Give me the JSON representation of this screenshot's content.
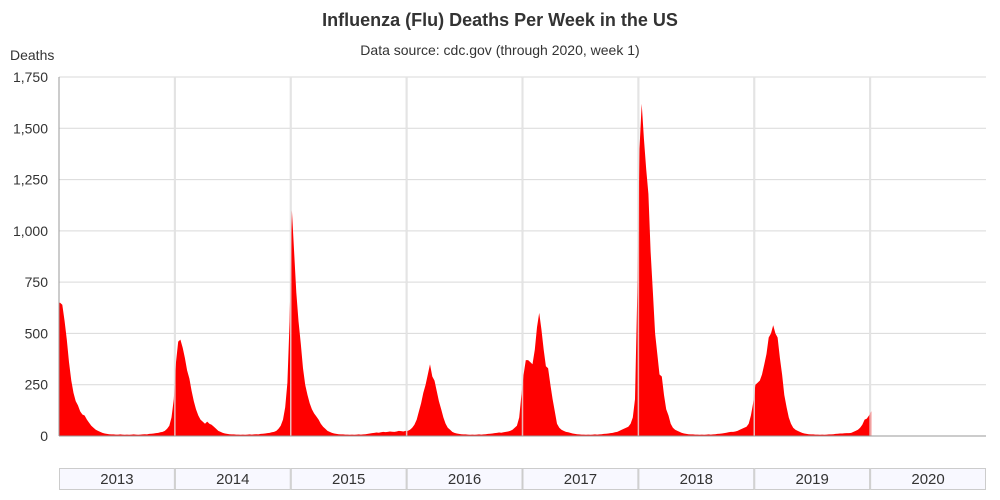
{
  "chart_data": {
    "type": "area",
    "title": "Influenza (Flu) Deaths Per Week in the US",
    "subtitle": "Data source: cdc.gov (through 2020, week 1)",
    "ylabel": "Deaths",
    "xlabel": "",
    "ylim": [
      0,
      1750
    ],
    "yticks": [
      0,
      250,
      500,
      750,
      1000,
      1250,
      1500,
      1750
    ],
    "ytick_labels": [
      "0",
      "250",
      "500",
      "750",
      "1,000",
      "1,250",
      "1,500",
      "1,750"
    ],
    "categories": [
      "2013",
      "2014",
      "2015",
      "2016",
      "2017",
      "2018",
      "2019",
      "2020"
    ],
    "grid": true,
    "color": "#ff0000",
    "weekly_deaths_by_year": {
      "2013": [
        650,
        640,
        560,
        470,
        360,
        270,
        210,
        170,
        150,
        120,
        105,
        100,
        80,
        65,
        50,
        40,
        30,
        25,
        20,
        15,
        12,
        10,
        9,
        8,
        8,
        7,
        7,
        8,
        7,
        6,
        7,
        6,
        7,
        8,
        7,
        6,
        7,
        8,
        9,
        8,
        10,
        11,
        12,
        14,
        15,
        18,
        20,
        25,
        35,
        50,
        90,
        180
      ],
      "2014": [
        360,
        460,
        470,
        430,
        380,
        320,
        280,
        220,
        170,
        130,
        100,
        80,
        70,
        60,
        70,
        60,
        55,
        45,
        35,
        25,
        20,
        15,
        12,
        10,
        9,
        8,
        8,
        7,
        7,
        6,
        7,
        6,
        7,
        8,
        7,
        8,
        9,
        8,
        10,
        11,
        12,
        14,
        15,
        18,
        20,
        25,
        35,
        50,
        80,
        140,
        260,
        560
      ],
      "2015": [
        1100,
        900,
        700,
        560,
        450,
        330,
        250,
        200,
        160,
        130,
        110,
        95,
        80,
        60,
        45,
        35,
        25,
        20,
        15,
        12,
        10,
        9,
        8,
        8,
        7,
        7,
        6,
        7,
        6,
        7,
        8,
        7,
        8,
        9,
        10,
        12,
        14,
        15,
        17,
        16,
        18,
        20,
        19,
        20,
        22,
        21,
        20,
        22,
        25,
        24,
        22,
        25
      ],
      "2016": [
        25,
        30,
        40,
        55,
        80,
        120,
        160,
        210,
        250,
        300,
        350,
        290,
        270,
        220,
        170,
        130,
        90,
        60,
        40,
        30,
        20,
        15,
        12,
        10,
        9,
        8,
        8,
        7,
        6,
        7,
        6,
        7,
        8,
        7,
        8,
        9,
        10,
        11,
        12,
        14,
        15,
        17,
        16,
        18,
        20,
        22,
        25,
        30,
        40,
        50,
        90,
        200
      ],
      "2017": [
        300,
        370,
        370,
        360,
        350,
        420,
        530,
        600,
        520,
        420,
        340,
        330,
        250,
        180,
        120,
        60,
        40,
        30,
        25,
        20,
        18,
        15,
        12,
        10,
        9,
        8,
        7,
        7,
        6,
        7,
        6,
        7,
        8,
        7,
        8,
        9,
        10,
        11,
        12,
        14,
        15,
        18,
        20,
        25,
        30,
        35,
        40,
        45,
        60,
        90,
        180,
        700
      ],
      "2018": [
        1400,
        1620,
        1450,
        1300,
        1180,
        900,
        700,
        500,
        400,
        300,
        290,
        200,
        130,
        100,
        60,
        40,
        30,
        25,
        20,
        15,
        12,
        10,
        9,
        8,
        8,
        7,
        7,
        6,
        7,
        6,
        7,
        8,
        7,
        8,
        9,
        10,
        11,
        12,
        14,
        16,
        18,
        20,
        20,
        22,
        25,
        30,
        35,
        40,
        45,
        60,
        100,
        160
      ],
      "2019": [
        250,
        260,
        270,
        300,
        350,
        400,
        480,
        500,
        540,
        500,
        480,
        380,
        300,
        200,
        140,
        90,
        60,
        40,
        30,
        25,
        20,
        15,
        12,
        10,
        9,
        8,
        8,
        7,
        7,
        6,
        7,
        6,
        7,
        8,
        8,
        9,
        10,
        11,
        12,
        12,
        13,
        14,
        14,
        15,
        20,
        25,
        30,
        40,
        55,
        80,
        85,
        100
      ],
      "2020": [
        120
      ]
    }
  }
}
